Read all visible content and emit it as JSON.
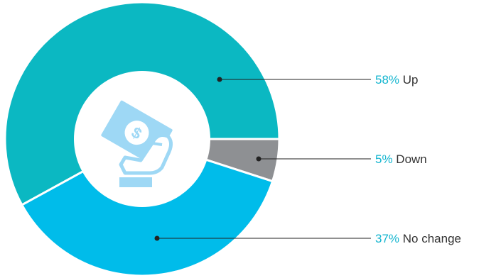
{
  "chart_data": {
    "type": "pie",
    "variant": "donut",
    "slices": [
      {
        "name": "Up",
        "percent_label": "58%",
        "value": 58,
        "color": "#0bb8c2"
      },
      {
        "name": "Down",
        "percent_label": "5%",
        "value": 5,
        "color": "#8e9093"
      },
      {
        "name": "No change",
        "percent_label": "37%",
        "value": 37,
        "color": "#00bcea"
      }
    ],
    "center_icon": "money-hand-icon",
    "center_icon_color": "#9ed8f5",
    "label_accent_color": "#13b5cf",
    "label_text_color": "#333333",
    "legend": "right"
  }
}
